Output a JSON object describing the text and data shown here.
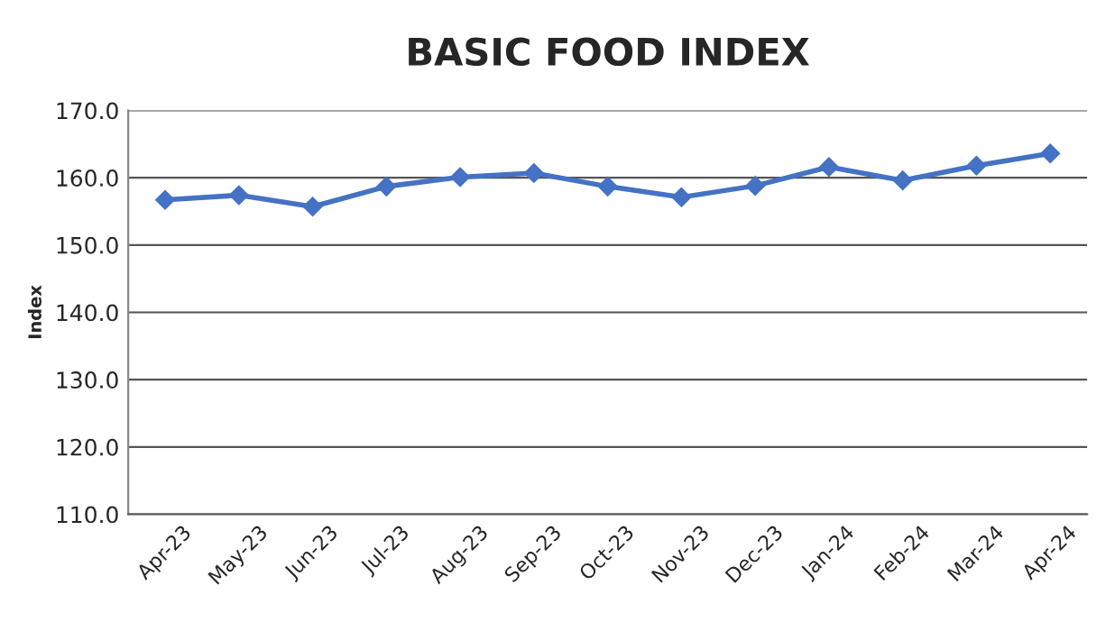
{
  "chart_data": {
    "type": "line",
    "title": "BASIC FOOD INDEX",
    "ylabel": "Index",
    "categories": [
      "Apr-23",
      "May-23",
      "Jun-23",
      "Jul-23",
      "Aug-23",
      "Sep-23",
      "Oct-23",
      "Nov-23",
      "Dec-23",
      "Jan-24",
      "Feb-24",
      "Mar-24",
      "Apr-24"
    ],
    "series": [
      {
        "color": "#4472c4",
        "values": [
          156.7,
          157.4,
          155.7,
          158.7,
          160.1,
          160.7,
          158.7,
          157.1,
          158.8,
          161.6,
          159.6,
          161.8,
          163.6
        ]
      }
    ],
    "ylim": [
      110,
      170
    ],
    "yticks": [
      {
        "value": 110,
        "label": "110.0"
      },
      {
        "value": 120,
        "label": "120.0"
      },
      {
        "value": 130,
        "label": "130.0"
      },
      {
        "value": 140,
        "label": "140.0"
      },
      {
        "value": 150,
        "label": "150.0"
      },
      {
        "value": 160,
        "label": "160.0"
      },
      {
        "value": 170,
        "label": "170.0"
      }
    ],
    "grid": "y",
    "marker": "diamond",
    "line_style": "solid"
  }
}
